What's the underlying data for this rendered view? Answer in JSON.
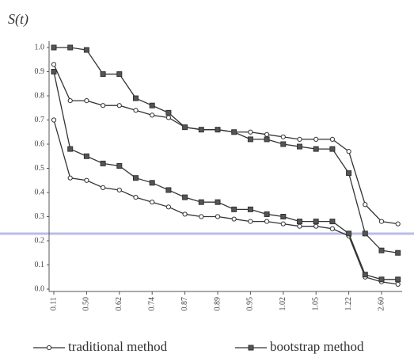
{
  "chart_data": {
    "type": "line",
    "y_label": "S(t)",
    "categories": [
      "0.11",
      null,
      "0.50",
      null,
      "0.62",
      null,
      "0.74",
      null,
      "0.87",
      null,
      "0.89",
      null,
      "0.95",
      null,
      "1.02",
      null,
      "1.05",
      null,
      "1.22",
      null,
      "2.60",
      null
    ],
    "ylim": [
      0,
      1
    ],
    "yticks": [
      {
        "value": 0,
        "label": "0.0"
      },
      0.1,
      0.2,
      0.3,
      0.4,
      0.5,
      0.6,
      0.7,
      0.8,
      0.9,
      {
        "value": 1,
        "label": "1.0"
      }
    ],
    "series": [
      {
        "name": "traditional method",
        "color": "#333333",
        "marker": "circle",
        "curves": [
          [
            0.93,
            0.78,
            0.78,
            0.76,
            0.76,
            0.74,
            0.72,
            0.71,
            0.67,
            0.66,
            0.66,
            0.65,
            0.65,
            0.64,
            0.63,
            0.62,
            0.62,
            0.62,
            0.57,
            0.35,
            0.28,
            0.27
          ],
          [
            0.7,
            0.46,
            0.45,
            0.42,
            0.41,
            0.38,
            0.36,
            0.34,
            0.31,
            0.3,
            0.3,
            0.29,
            0.28,
            0.28,
            0.27,
            0.26,
            0.26,
            0.25,
            0.22,
            0.05,
            0.03,
            0.02
          ]
        ]
      },
      {
        "name": "bootstrap method",
        "color": "#333333",
        "marker": "square",
        "curves": [
          [
            1.0,
            1.0,
            0.99,
            0.89,
            0.89,
            0.79,
            0.76,
            0.73,
            0.67,
            0.66,
            0.66,
            0.65,
            0.62,
            0.62,
            0.6,
            0.59,
            0.58,
            0.58,
            0.48,
            0.23,
            0.16,
            0.15
          ],
          [
            0.9,
            0.58,
            0.55,
            0.52,
            0.51,
            0.46,
            0.44,
            0.41,
            0.38,
            0.36,
            0.36,
            0.33,
            0.33,
            0.31,
            0.3,
            0.28,
            0.28,
            0.28,
            0.23,
            0.06,
            0.04,
            0.04
          ]
        ]
      }
    ]
  }
}
